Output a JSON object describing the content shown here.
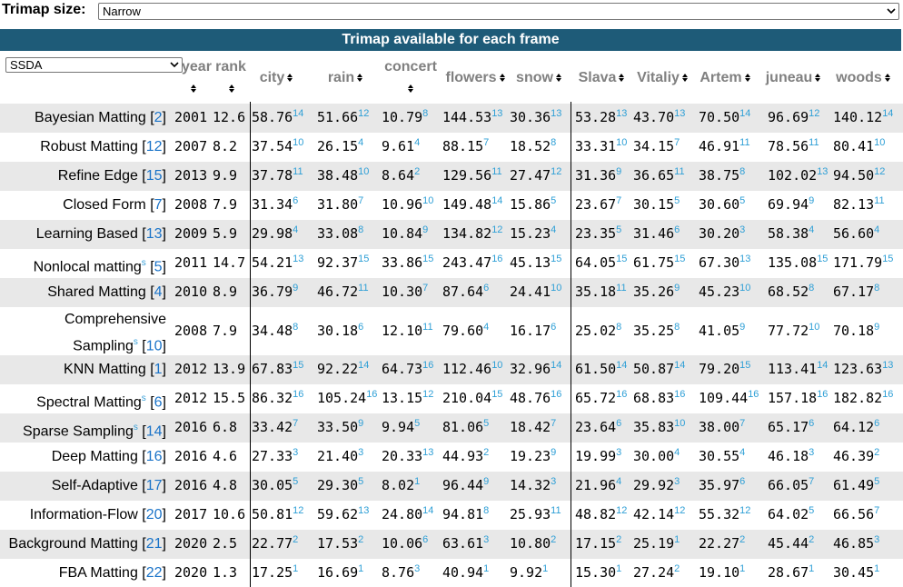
{
  "trimap": {
    "label": "Trimap size:",
    "selected": "Narrow"
  },
  "banner": "Trimap available for each frame",
  "method_filter": {
    "selected": "SSDA"
  },
  "columns": {
    "year": "year",
    "rank": "rank",
    "datasets": [
      "city",
      "rain",
      "concert",
      "flowers",
      "snow",
      "Slava",
      "Vitaliy",
      "Artem",
      "juneau",
      "woods"
    ]
  },
  "rows": [
    {
      "name": "Bayesian Matting",
      "ref": "2",
      "sup": "",
      "year": "2001",
      "rank": "12.6",
      "vals": [
        [
          "58.76",
          "14"
        ],
        [
          "51.66",
          "12"
        ],
        [
          "10.79",
          "8"
        ],
        [
          "144.53",
          "13"
        ],
        [
          "30.36",
          "13"
        ],
        [
          "53.28",
          "13"
        ],
        [
          "43.70",
          "13"
        ],
        [
          "70.50",
          "14"
        ],
        [
          "96.69",
          "12"
        ],
        [
          "140.12",
          "14"
        ]
      ]
    },
    {
      "name": "Robust Matting",
      "ref": "12",
      "sup": "",
      "year": "2007",
      "rank": "8.2",
      "vals": [
        [
          "37.54",
          "10"
        ],
        [
          "26.15",
          "4"
        ],
        [
          "9.61",
          "4"
        ],
        [
          "88.15",
          "7"
        ],
        [
          "18.52",
          "8"
        ],
        [
          "33.31",
          "10"
        ],
        [
          "34.15",
          "7"
        ],
        [
          "46.91",
          "11"
        ],
        [
          "78.56",
          "11"
        ],
        [
          "80.41",
          "10"
        ]
      ]
    },
    {
      "name": "Refine Edge",
      "ref": "15",
      "sup": "",
      "year": "2013",
      "rank": "9.9",
      "vals": [
        [
          "37.78",
          "11"
        ],
        [
          "38.48",
          "10"
        ],
        [
          "8.64",
          "2"
        ],
        [
          "129.56",
          "11"
        ],
        [
          "27.47",
          "12"
        ],
        [
          "31.36",
          "9"
        ],
        [
          "36.65",
          "11"
        ],
        [
          "38.75",
          "8"
        ],
        [
          "102.02",
          "13"
        ],
        [
          "94.50",
          "12"
        ]
      ]
    },
    {
      "name": "Closed Form",
      "ref": "7",
      "sup": "",
      "year": "2008",
      "rank": "7.9",
      "vals": [
        [
          "31.34",
          "6"
        ],
        [
          "31.80",
          "7"
        ],
        [
          "10.96",
          "10"
        ],
        [
          "149.48",
          "14"
        ],
        [
          "15.86",
          "5"
        ],
        [
          "23.67",
          "7"
        ],
        [
          "30.15",
          "5"
        ],
        [
          "30.60",
          "5"
        ],
        [
          "69.94",
          "9"
        ],
        [
          "82.13",
          "11"
        ]
      ]
    },
    {
      "name": "Learning Based",
      "ref": "13",
      "sup": "",
      "year": "2009",
      "rank": "5.9",
      "vals": [
        [
          "29.98",
          "4"
        ],
        [
          "33.08",
          "8"
        ],
        [
          "10.84",
          "9"
        ],
        [
          "134.82",
          "12"
        ],
        [
          "15.23",
          "4"
        ],
        [
          "23.35",
          "5"
        ],
        [
          "31.46",
          "6"
        ],
        [
          "30.20",
          "3"
        ],
        [
          "58.38",
          "4"
        ],
        [
          "56.60",
          "4"
        ]
      ]
    },
    {
      "name": "Nonlocal matting",
      "ref": "5",
      "sup": "s",
      "year": "2011",
      "rank": "14.7",
      "vals": [
        [
          "54.21",
          "13"
        ],
        [
          "92.37",
          "15"
        ],
        [
          "33.86",
          "15"
        ],
        [
          "243.47",
          "16"
        ],
        [
          "45.13",
          "15"
        ],
        [
          "64.05",
          "15"
        ],
        [
          "61.75",
          "15"
        ],
        [
          "67.30",
          "13"
        ],
        [
          "135.08",
          "15"
        ],
        [
          "171.79",
          "15"
        ]
      ]
    },
    {
      "name": "Shared Matting",
      "ref": "4",
      "sup": "",
      "year": "2010",
      "rank": "8.9",
      "vals": [
        [
          "36.79",
          "9"
        ],
        [
          "46.72",
          "11"
        ],
        [
          "10.30",
          "7"
        ],
        [
          "87.64",
          "6"
        ],
        [
          "24.41",
          "10"
        ],
        [
          "35.18",
          "11"
        ],
        [
          "35.26",
          "9"
        ],
        [
          "45.23",
          "10"
        ],
        [
          "68.52",
          "8"
        ],
        [
          "67.17",
          "8"
        ]
      ]
    },
    {
      "name": "Comprehensive",
      "name2": "Sampling",
      "ref": "10",
      "sup": "s",
      "year": "2008",
      "rank": "7.9",
      "vals": [
        [
          "34.48",
          "8"
        ],
        [
          "30.18",
          "6"
        ],
        [
          "12.10",
          "11"
        ],
        [
          "79.60",
          "4"
        ],
        [
          "16.17",
          "6"
        ],
        [
          "25.02",
          "8"
        ],
        [
          "35.25",
          "8"
        ],
        [
          "41.05",
          "9"
        ],
        [
          "77.72",
          "10"
        ],
        [
          "70.18",
          "9"
        ]
      ]
    },
    {
      "name": "KNN Matting",
      "ref": "1",
      "sup": "",
      "year": "2012",
      "rank": "13.9",
      "vals": [
        [
          "67.83",
          "15"
        ],
        [
          "92.22",
          "14"
        ],
        [
          "64.73",
          "16"
        ],
        [
          "112.46",
          "10"
        ],
        [
          "32.96",
          "14"
        ],
        [
          "61.50",
          "14"
        ],
        [
          "50.87",
          "14"
        ],
        [
          "79.20",
          "15"
        ],
        [
          "113.41",
          "14"
        ],
        [
          "123.63",
          "13"
        ]
      ]
    },
    {
      "name": "Spectral Matting",
      "ref": "6",
      "sup": "s",
      "year": "2012",
      "rank": "15.5",
      "vals": [
        [
          "86.32",
          "16"
        ],
        [
          "105.24",
          "16"
        ],
        [
          "13.15",
          "12"
        ],
        [
          "210.04",
          "15"
        ],
        [
          "48.76",
          "16"
        ],
        [
          "65.72",
          "16"
        ],
        [
          "68.83",
          "16"
        ],
        [
          "109.44",
          "16"
        ],
        [
          "157.18",
          "16"
        ],
        [
          "182.82",
          "16"
        ]
      ]
    },
    {
      "name": "Sparse Sampling",
      "ref": "14",
      "sup": "s",
      "year": "2016",
      "rank": "6.8",
      "vals": [
        [
          "33.42",
          "7"
        ],
        [
          "33.50",
          "9"
        ],
        [
          "9.94",
          "5"
        ],
        [
          "81.06",
          "5"
        ],
        [
          "18.42",
          "7"
        ],
        [
          "23.64",
          "6"
        ],
        [
          "35.83",
          "10"
        ],
        [
          "38.00",
          "7"
        ],
        [
          "65.17",
          "6"
        ],
        [
          "64.12",
          "6"
        ]
      ]
    },
    {
      "name": "Deep Matting",
      "ref": "16",
      "sup": "",
      "year": "2016",
      "rank": "4.6",
      "vals": [
        [
          "27.33",
          "3"
        ],
        [
          "21.40",
          "3"
        ],
        [
          "20.33",
          "13"
        ],
        [
          "44.93",
          "2"
        ],
        [
          "19.23",
          "9"
        ],
        [
          "19.99",
          "3"
        ],
        [
          "30.00",
          "4"
        ],
        [
          "30.55",
          "4"
        ],
        [
          "46.18",
          "3"
        ],
        [
          "46.39",
          "2"
        ]
      ]
    },
    {
      "name": "Self-Adaptive",
      "ref": "17",
      "sup": "",
      "year": "2016",
      "rank": "4.8",
      "vals": [
        [
          "30.05",
          "5"
        ],
        [
          "29.30",
          "5"
        ],
        [
          "8.02",
          "1"
        ],
        [
          "96.44",
          "9"
        ],
        [
          "14.32",
          "3"
        ],
        [
          "21.96",
          "4"
        ],
        [
          "29.92",
          "3"
        ],
        [
          "35.97",
          "6"
        ],
        [
          "66.05",
          "7"
        ],
        [
          "61.49",
          "5"
        ]
      ]
    },
    {
      "name": "Information-Flow",
      "ref": "20",
      "sup": "",
      "year": "2017",
      "rank": "10.6",
      "vals": [
        [
          "50.81",
          "12"
        ],
        [
          "59.62",
          "13"
        ],
        [
          "24.80",
          "14"
        ],
        [
          "94.81",
          "8"
        ],
        [
          "25.93",
          "11"
        ],
        [
          "48.82",
          "12"
        ],
        [
          "42.14",
          "12"
        ],
        [
          "55.32",
          "12"
        ],
        [
          "64.02",
          "5"
        ],
        [
          "66.56",
          "7"
        ]
      ]
    },
    {
      "name": "Background Matting",
      "ref": "21",
      "sup": "",
      "year": "2020",
      "rank": "2.5",
      "vals": [
        [
          "22.77",
          "2"
        ],
        [
          "17.53",
          "2"
        ],
        [
          "10.06",
          "6"
        ],
        [
          "63.61",
          "3"
        ],
        [
          "10.80",
          "2"
        ],
        [
          "17.15",
          "2"
        ],
        [
          "25.19",
          "1"
        ],
        [
          "22.27",
          "2"
        ],
        [
          "45.44",
          "2"
        ],
        [
          "46.85",
          "3"
        ]
      ]
    },
    {
      "name": "FBA Matting",
      "ref": "22",
      "sup": "",
      "year": "2020",
      "rank": "1.3",
      "vals": [
        [
          "17.25",
          "1"
        ],
        [
          "16.69",
          "1"
        ],
        [
          "8.76",
          "3"
        ],
        [
          "40.94",
          "1"
        ],
        [
          "9.92",
          "1"
        ],
        [
          "15.30",
          "1"
        ],
        [
          "27.24",
          "2"
        ],
        [
          "19.10",
          "1"
        ],
        [
          "28.67",
          "1"
        ],
        [
          "30.45",
          "1"
        ]
      ]
    }
  ]
}
